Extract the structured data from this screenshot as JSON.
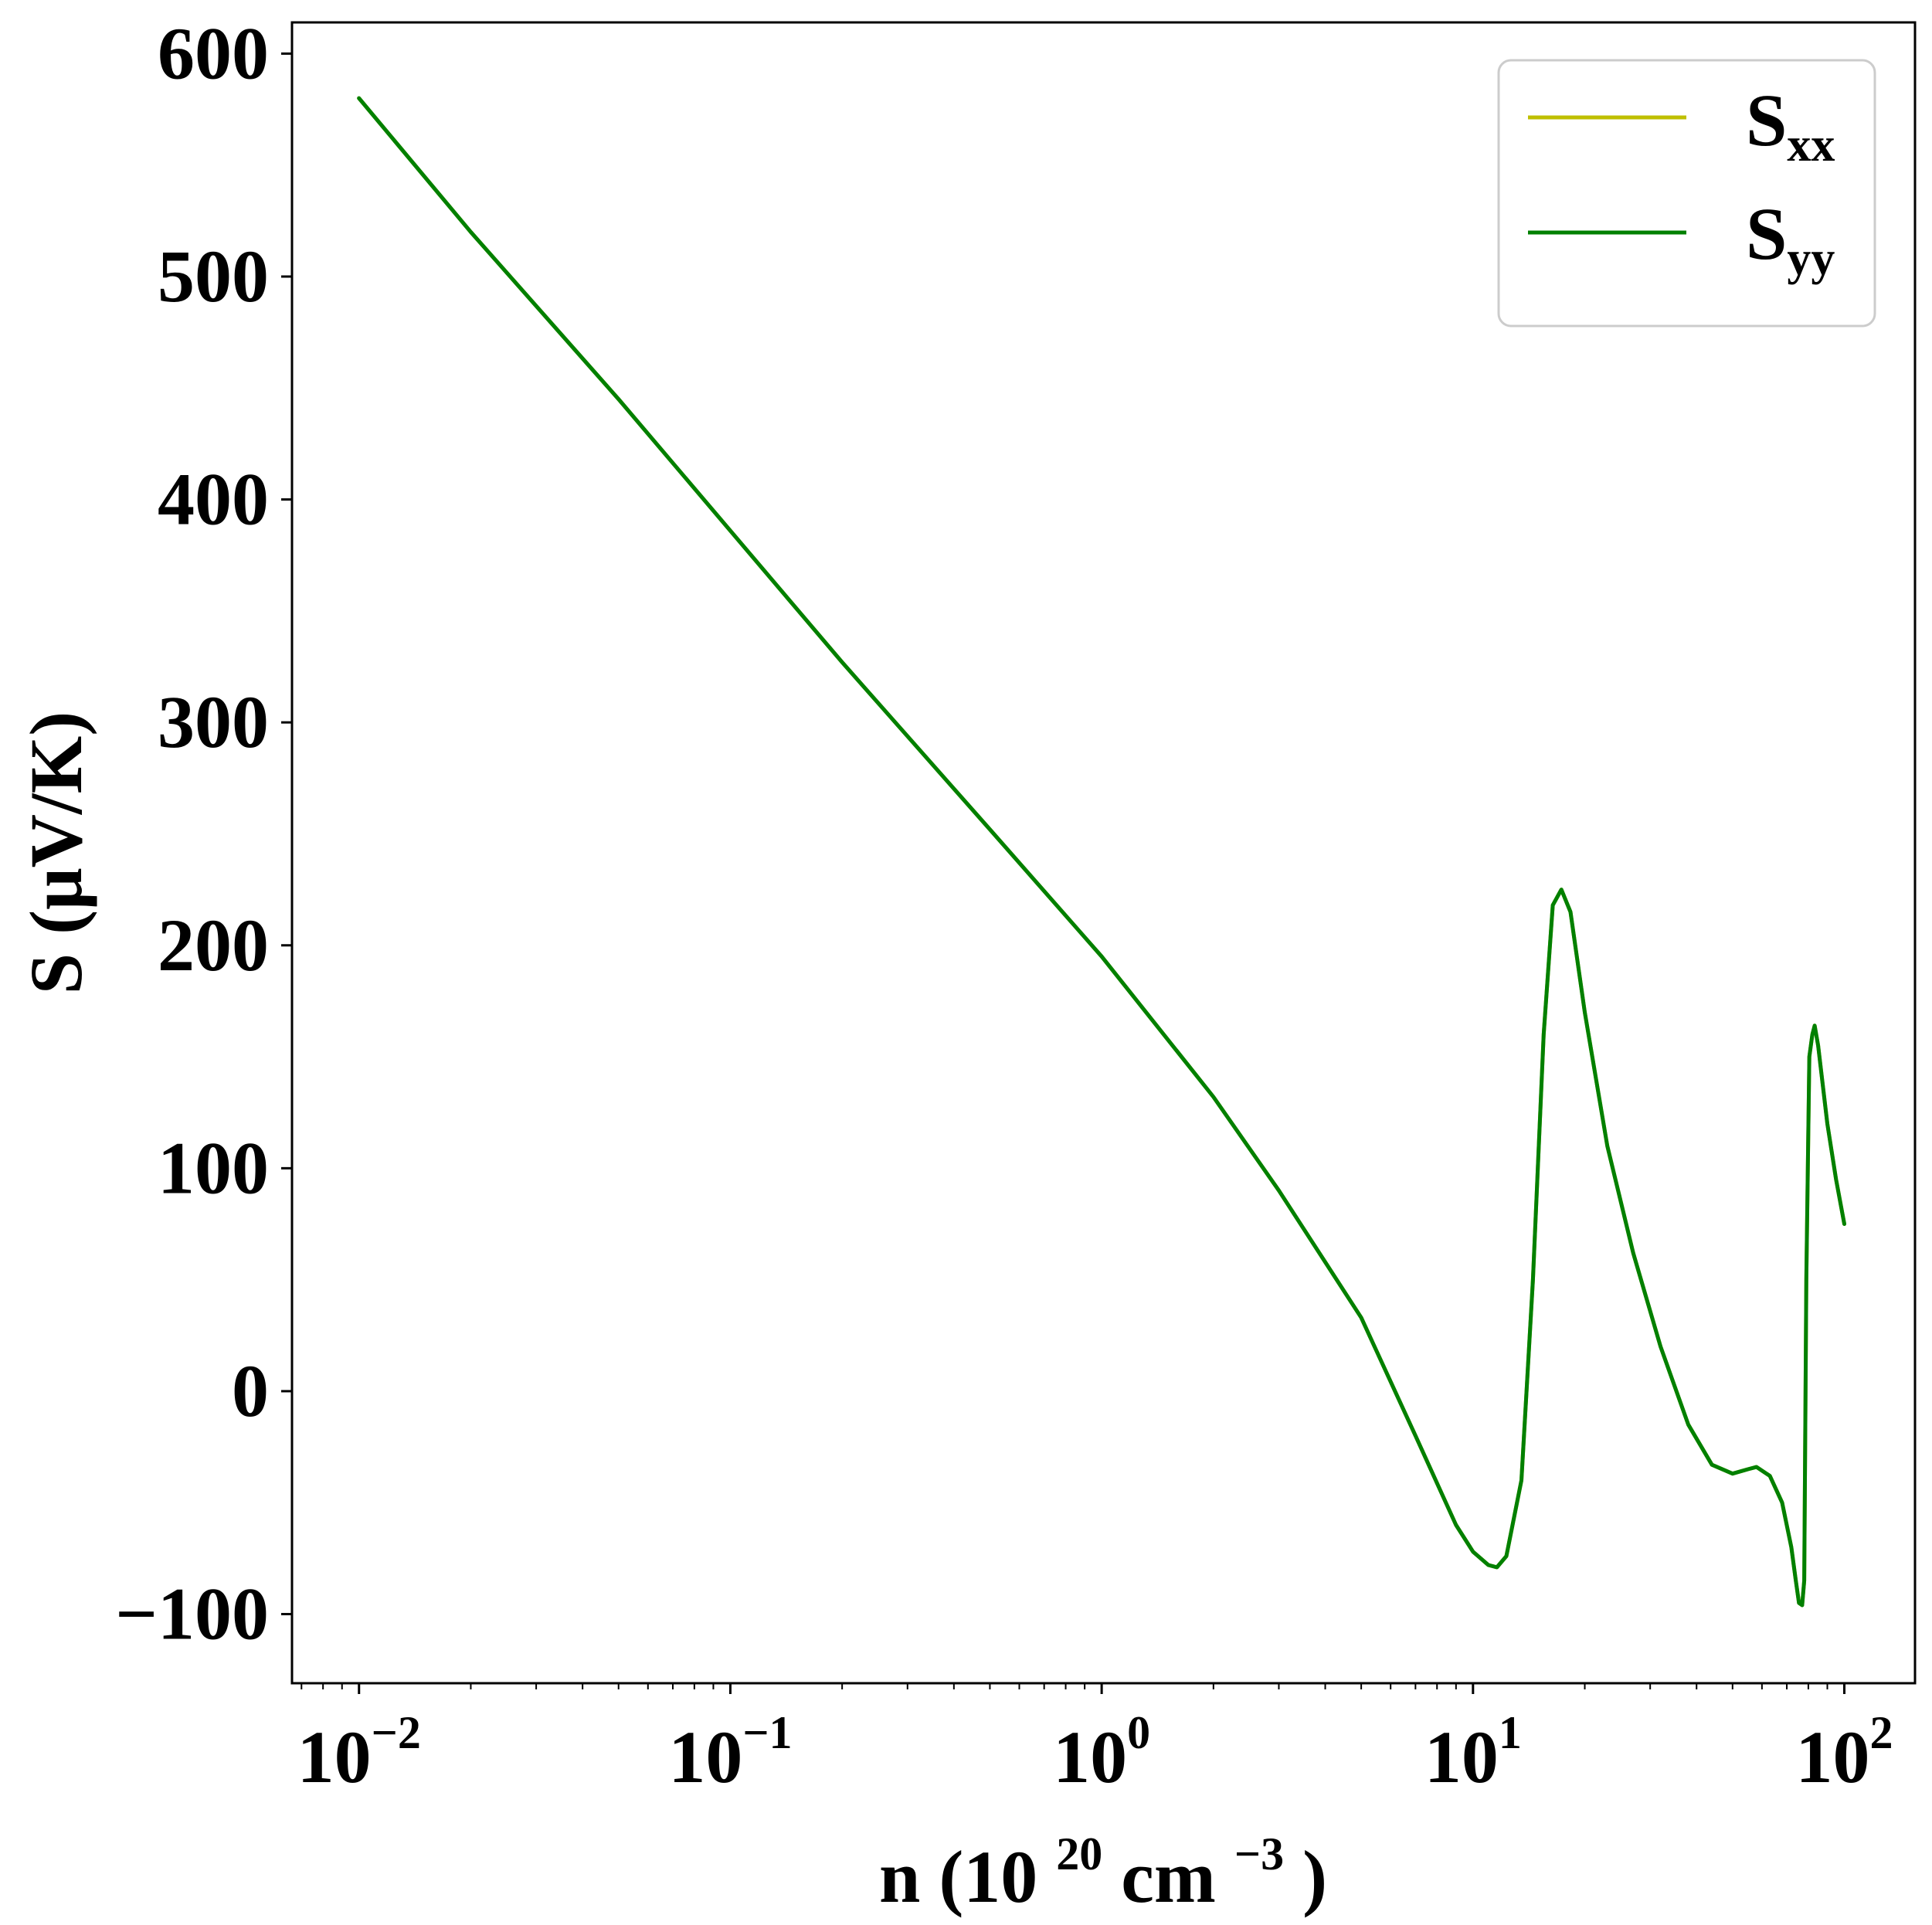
{
  "chart_data": {
    "type": "line",
    "xscale": "log",
    "xlim": [
      0.0066,
      155
    ],
    "ylim": [
      -131,
      614
    ],
    "xticks": [
      {
        "value": 0.01,
        "base": "10",
        "exp": "−2"
      },
      {
        "value": 0.1,
        "base": "10",
        "exp": "−1"
      },
      {
        "value": 1,
        "base": "10",
        "exp": "0"
      },
      {
        "value": 10,
        "base": "10",
        "exp": "1"
      },
      {
        "value": 100,
        "base": "10",
        "exp": "2"
      }
    ],
    "yticks": [
      {
        "value": -100,
        "label": "−100"
      },
      {
        "value": 0,
        "label": "0"
      },
      {
        "value": 100,
        "label": "100"
      },
      {
        "value": 200,
        "label": "200"
      },
      {
        "value": 300,
        "label": "300"
      },
      {
        "value": 400,
        "label": "400"
      },
      {
        "value": 500,
        "label": "500"
      },
      {
        "value": 600,
        "label": "600"
      }
    ],
    "xlabel": {
      "main": "n (10",
      "sup": "20",
      "mid": " cm",
      "sup2": "−3",
      "end": ")"
    },
    "ylabel": "S (μV/K)",
    "grid": false,
    "legend_position": "top-right",
    "series": [
      {
        "name": "S",
        "sub": "xx",
        "color": "#bfbf00",
        "x": [
          0.01,
          0.02,
          0.05,
          0.1,
          0.2,
          0.5,
          1,
          2,
          3,
          5,
          7,
          9,
          10,
          11,
          11.6,
          12.3,
          13.5,
          14.5,
          15.5,
          16.4,
          17.3,
          18.3,
          20,
          23,
          27,
          32,
          38,
          44,
          50,
          55,
          58,
          63,
          68,
          72,
          74,
          75.5,
          77,
          78,
          79,
          80.5,
          82,
          83.2,
          85,
          90,
          95,
          100
        ],
        "y": [
          580,
          520,
          445,
          386,
          327,
          252,
          195,
          132,
          90,
          33,
          -20,
          -60,
          -72,
          -78,
          -79,
          -74,
          -40,
          50,
          160,
          218,
          225,
          215,
          170,
          110,
          62,
          20,
          -15,
          -33,
          -37,
          -35,
          -34,
          -38,
          -50,
          -70,
          -85,
          -95,
          -96,
          -85,
          50,
          150,
          160,
          164,
          155,
          120,
          95,
          75
        ]
      },
      {
        "name": "S",
        "sub": "yy",
        "color": "#008000",
        "x": [
          0.01,
          0.02,
          0.05,
          0.1,
          0.2,
          0.5,
          1,
          2,
          3,
          5,
          7,
          9,
          10,
          11,
          11.6,
          12.3,
          13.5,
          14.5,
          15.5,
          16.4,
          17.3,
          18.3,
          20,
          23,
          27,
          32,
          38,
          44,
          50,
          55,
          58,
          63,
          68,
          72,
          74,
          75.5,
          77,
          78,
          79,
          80.5,
          82,
          83.2,
          85,
          90,
          95,
          100
        ],
        "y": [
          580,
          520,
          445,
          386,
          327,
          252,
          195,
          132,
          90,
          33,
          -20,
          -60,
          -72,
          -78,
          -79,
          -74,
          -40,
          50,
          160,
          218,
          225,
          215,
          170,
          110,
          62,
          20,
          -15,
          -33,
          -37,
          -35,
          -34,
          -38,
          -50,
          -70,
          -85,
          -95,
          -96,
          -85,
          50,
          150,
          160,
          164,
          155,
          120,
          95,
          75
        ]
      }
    ]
  }
}
